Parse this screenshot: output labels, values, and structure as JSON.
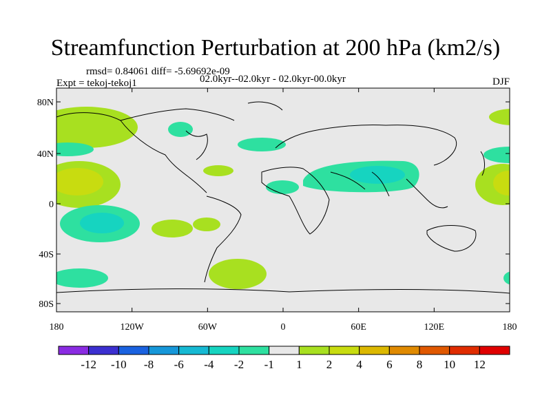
{
  "title": "Streamfunction Perturbation at 200 hPa (km2/s)",
  "stats_line": "rmsd= 0.84061 diff= -5.69692e-09",
  "period_line": "02.0kyr--02.0kyr - 02.0kyr-00.0kyr",
  "expt_line": "Expt = tekoj-tekoj1",
  "season": "DJF",
  "lat_ticks": [
    "80N",
    "40N",
    "0",
    "40S",
    "80S"
  ],
  "lon_ticks": [
    "180",
    "120W",
    "60W",
    "0",
    "60E",
    "120E",
    "180"
  ],
  "colorbar": {
    "labels": [
      "-12",
      "-10",
      "-8",
      "-6",
      "-4",
      "-2",
      "-1",
      "1",
      "2",
      "4",
      "6",
      "8",
      "10",
      "12"
    ],
    "colors": [
      "#8a2be2",
      "#3b2fd0",
      "#1a62e0",
      "#1697d9",
      "#16b9d3",
      "#16d4c0",
      "#2ee0a0",
      "#e8e8e8",
      "#a8e020",
      "#c8dc10",
      "#dcb800",
      "#e08a00",
      "#e05800",
      "#e02c00",
      "#e00000"
    ]
  }
}
